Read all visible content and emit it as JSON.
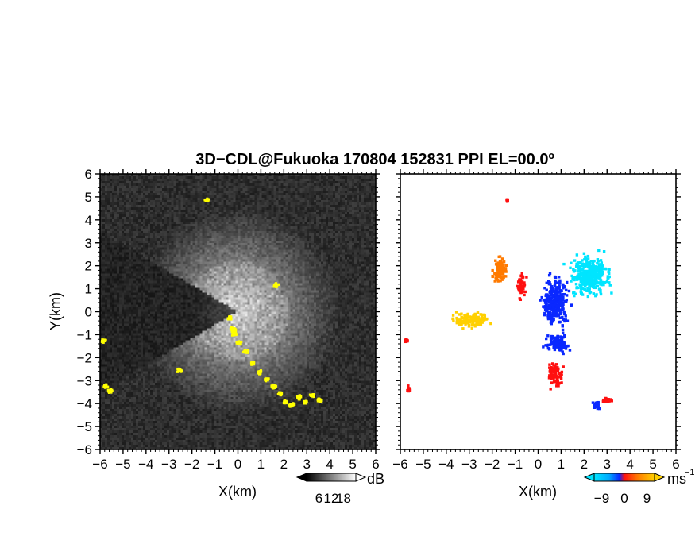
{
  "title": "3D−CDL@Fukuoka 170804 152831 PPI EL=00.0º",
  "chart_data": [
    {
      "type": "heatmap",
      "panel": "reflectivity",
      "xlabel": "X(km)",
      "ylabel": "Y(km)",
      "xlim": [
        -6,
        6
      ],
      "ylim": [
        -6,
        6
      ],
      "xticks": [
        "−6",
        "−5",
        "−4",
        "−3",
        "−2",
        "−1",
        "0",
        "1",
        "2",
        "3",
        "4",
        "5",
        "6"
      ],
      "yticks": [
        "−6",
        "−5",
        "−4",
        "−3",
        "−2",
        "−1",
        "0",
        "1",
        "2",
        "3",
        "4",
        "5",
        "6"
      ],
      "colorbar": {
        "unit": "dB",
        "ticks": [
          "6",
          "12",
          "18"
        ],
        "tick_values": [
          6,
          12,
          18
        ],
        "range": [
          0,
          24
        ],
        "colors": [
          "#000000",
          "#ffffff"
        ]
      },
      "background_color": "#2a2a2a",
      "highlight_color": "#ffff00",
      "sector_deg": [
        150,
        210
      ],
      "yellow_echoes_km": [
        [
          -0.3,
          -0.7
        ],
        [
          -0.2,
          -0.9
        ],
        [
          0.0,
          -1.3
        ],
        [
          0.3,
          -1.7
        ],
        [
          0.6,
          -2.2
        ],
        [
          0.9,
          -2.6
        ],
        [
          1.2,
          -2.9
        ],
        [
          1.5,
          -3.2
        ],
        [
          1.8,
          -3.5
        ],
        [
          2.0,
          -3.9
        ],
        [
          2.3,
          -4.0
        ],
        [
          2.6,
          -3.7
        ],
        [
          2.9,
          -3.9
        ],
        [
          3.2,
          -3.6
        ],
        [
          3.5,
          -3.8
        ],
        [
          -5.9,
          -1.2
        ],
        [
          -5.8,
          -3.2
        ],
        [
          -5.6,
          -3.4
        ],
        [
          -1.4,
          4.9
        ],
        [
          1.6,
          1.2
        ],
        [
          -2.6,
          -2.5
        ],
        [
          -0.4,
          -0.2
        ]
      ]
    },
    {
      "type": "heatmap",
      "panel": "doppler_velocity",
      "xlabel": "X(km)",
      "ylabel": "",
      "xlim": [
        -6,
        6
      ],
      "ylim": [
        -6,
        6
      ],
      "xticks": [
        "−6",
        "−5",
        "−4",
        "−3",
        "−2",
        "−1",
        "0",
        "1",
        "2",
        "3",
        "4",
        "5",
        "6"
      ],
      "colorbar": {
        "unit": "ms",
        "unit_exponent": "−1",
        "ticks": [
          "−9",
          "0",
          "9"
        ],
        "tick_values": [
          -9,
          0,
          9
        ],
        "range": [
          -12,
          12
        ]
      },
      "colors": {
        "cyan": "#00e5ff",
        "blue": "#0a28ff",
        "red": "#ff1010",
        "orange": "#ff7a00",
        "yellow": "#ffd000"
      },
      "clusters": [
        {
          "color": "cyan",
          "center_km": [
            2.2,
            1.6
          ],
          "spread_km": [
            1.3,
            1.3
          ]
        },
        {
          "color": "blue",
          "center_km": [
            0.7,
            0.5
          ],
          "spread_km": [
            0.9,
            1.6
          ]
        },
        {
          "color": "blue",
          "center_km": [
            0.8,
            -1.3
          ],
          "spread_km": [
            0.8,
            0.7
          ]
        },
        {
          "color": "orange",
          "center_km": [
            -1.7,
            1.9
          ],
          "spread_km": [
            0.5,
            0.8
          ]
        },
        {
          "color": "red",
          "center_km": [
            -0.8,
            1.2
          ],
          "spread_km": [
            0.3,
            0.9
          ]
        },
        {
          "color": "yellow",
          "center_km": [
            -3.0,
            -0.3
          ],
          "spread_km": [
            1.2,
            0.5
          ]
        },
        {
          "color": "red",
          "center_km": [
            0.7,
            -2.7
          ],
          "spread_km": [
            0.5,
            0.8
          ]
        },
        {
          "color": "red",
          "center_km": [
            2.9,
            -3.8
          ],
          "spread_km": [
            0.5,
            0.15
          ]
        },
        {
          "color": "blue",
          "center_km": [
            2.5,
            -4.0
          ],
          "spread_km": [
            0.3,
            0.25
          ]
        },
        {
          "color": "red",
          "center_km": [
            -5.7,
            -3.3
          ],
          "spread_km": [
            0.15,
            0.2
          ]
        },
        {
          "color": "red",
          "center_km": [
            -5.8,
            -1.2
          ],
          "spread_km": [
            0.1,
            0.2
          ]
        },
        {
          "color": "red",
          "center_km": [
            -1.4,
            4.9
          ],
          "spread_km": [
            0.05,
            0.1
          ]
        }
      ]
    }
  ]
}
